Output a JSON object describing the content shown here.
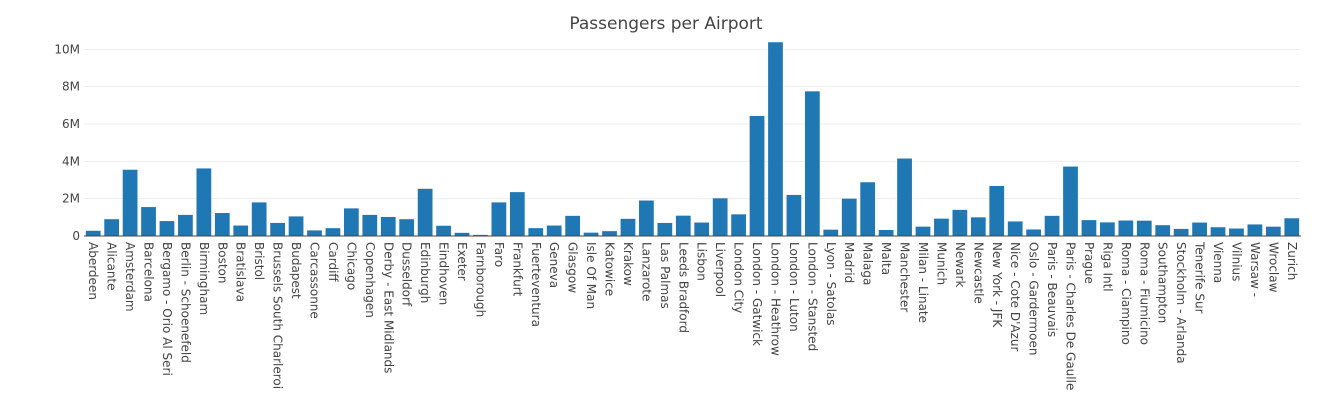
{
  "chart_data": {
    "type": "bar",
    "title": "Passengers per Airport",
    "xlabel": "",
    "ylabel": "",
    "ylim": [
      0,
      10500000
    ],
    "yticks": [
      0,
      2000000,
      4000000,
      6000000,
      8000000,
      10000000
    ],
    "ytick_labels": [
      "0",
      "2M",
      "4M",
      "6M",
      "8M",
      "10M"
    ],
    "grid": true,
    "bar_color": "#1f77b4",
    "categories": [
      "Aberdeen",
      "Alicante",
      "Amsterdam",
      "Barcelona",
      "Bergamo - Orio Al Seri",
      "Berlin - Schoenefeld",
      "Birmingham",
      "Boston",
      "Bratislava",
      "Bristol",
      "Brussels South Charleroi",
      "Budapest",
      "Carcassonne",
      "Cardiff",
      "Chicago",
      "Copenhagen",
      "Derby - East Midlands",
      "Dusseldorf",
      "Edinburgh",
      "Eindhoven",
      "Exeter",
      "Farnborough",
      "Faro",
      "Frankfurt",
      "Fuerteventura",
      "Geneva",
      "Glasgow",
      "Isle Of Man",
      "Katowice",
      "Krakow",
      "Lanzarote",
      "Las Palmas",
      "Leeds Bradford",
      "Lisbon",
      "Liverpool",
      "London City",
      "London - Gatwick",
      "London - Heathrow",
      "London - Luton",
      "London - Stansted",
      "Lyon - Satolas",
      "Madrid",
      "Malaga",
      "Malta",
      "Manchester",
      "Milan - Linate",
      "Munich",
      "Newark",
      "Newcastle",
      "New York - JFK",
      "Nice - Cote D'Azur",
      "Oslo - Gardermoen",
      "Paris - Beauvais",
      "Paris - Charles De Gaulle",
      "Prague",
      "Riga Intl",
      "Roma - Ciampino",
      "Roma - Fiumicino",
      "Southampton",
      "Stockholm - Arlanda",
      "Tenerife Sur",
      "Vienna",
      "Vilnius",
      "Warsaw -",
      "Wroclaw",
      "Zurich"
    ],
    "values": [
      280000,
      900000,
      3550000,
      1550000,
      800000,
      1130000,
      3620000,
      1230000,
      560000,
      1800000,
      700000,
      1050000,
      300000,
      420000,
      1480000,
      1130000,
      1020000,
      900000,
      2530000,
      550000,
      170000,
      60000,
      1800000,
      2350000,
      420000,
      560000,
      1080000,
      180000,
      260000,
      920000,
      1900000,
      700000,
      1090000,
      720000,
      2020000,
      1160000,
      6430000,
      10380000,
      2200000,
      7750000,
      340000,
      2000000,
      2880000,
      320000,
      4150000,
      500000,
      930000,
      1400000,
      1000000,
      2680000,
      780000,
      350000,
      1080000,
      3720000,
      850000,
      730000,
      830000,
      820000,
      580000,
      380000,
      720000,
      470000,
      400000,
      620000,
      500000,
      950000
    ]
  }
}
